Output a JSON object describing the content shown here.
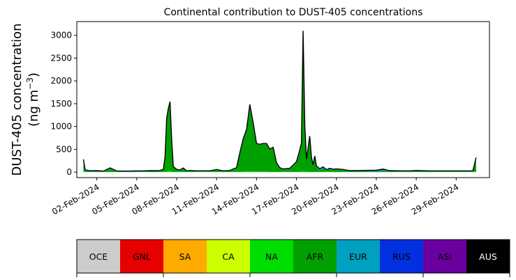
{
  "chart_data": {
    "type": "area",
    "title": "Continental contribution to DUST-405 concentrations",
    "ylabel_line1": "DUST-405 concentration",
    "ylabel_line2": "(ng m",
    "ylabel_unit_exp": "−3",
    "ylabel_close": ")",
    "ylim": [
      -120,
      3300
    ],
    "yticks": [
      0,
      500,
      1000,
      1500,
      2000,
      2500,
      3000
    ],
    "xlim": [
      "2024-01-31T12:00",
      "2024-03-02T12:00"
    ],
    "xticks": [
      "02-Feb-2024",
      "05-Feb-2024",
      "08-Feb-2024",
      "11-Feb-2024",
      "14-Feb-2024",
      "17-Feb-2024",
      "20-Feb-2024",
      "23-Feb-2024",
      "26-Feb-2024",
      "29-Feb-2024"
    ],
    "grid": false,
    "x": [
      "2024-02-01T00:00",
      "2024-02-01T03:00",
      "2024-02-01T06:00",
      "2024-02-01T12:00",
      "2024-02-02T00:00",
      "2024-02-02T12:00",
      "2024-02-03T00:00",
      "2024-02-03T12:00",
      "2024-02-03T18:00",
      "2024-02-04T00:00",
      "2024-02-04T12:00",
      "2024-02-05T00:00",
      "2024-02-05T12:00",
      "2024-02-06T00:00",
      "2024-02-06T12:00",
      "2024-02-06T18:00",
      "2024-02-07T00:00",
      "2024-02-07T03:00",
      "2024-02-07T06:00",
      "2024-02-07T09:00",
      "2024-02-07T12:00",
      "2024-02-07T15:00",
      "2024-02-07T18:00",
      "2024-02-08T00:00",
      "2024-02-08T06:00",
      "2024-02-08T12:00",
      "2024-02-08T18:00",
      "2024-02-09T00:00",
      "2024-02-09T12:00",
      "2024-02-10T00:00",
      "2024-02-10T12:00",
      "2024-02-11T00:00",
      "2024-02-11T12:00",
      "2024-02-12T00:00",
      "2024-02-12T12:00",
      "2024-02-12T18:00",
      "2024-02-13T00:00",
      "2024-02-13T06:00",
      "2024-02-13T12:00",
      "2024-02-13T18:00",
      "2024-02-14T00:00",
      "2024-02-14T06:00",
      "2024-02-14T12:00",
      "2024-02-14T18:00",
      "2024-02-15T00:00",
      "2024-02-15T06:00",
      "2024-02-15T12:00",
      "2024-02-15T18:00",
      "2024-02-16T00:00",
      "2024-02-16T12:00",
      "2024-02-16T18:00",
      "2024-02-17T00:00",
      "2024-02-17T06:00",
      "2024-02-17T09:00",
      "2024-02-17T12:00",
      "2024-02-17T15:00",
      "2024-02-17T18:00",
      "2024-02-17T21:00",
      "2024-02-18T00:00",
      "2024-02-18T03:00",
      "2024-02-18T06:00",
      "2024-02-18T09:00",
      "2024-02-18T12:00",
      "2024-02-18T18:00",
      "2024-02-19T00:00",
      "2024-02-19T06:00",
      "2024-02-19T12:00",
      "2024-02-19T18:00",
      "2024-02-20T00:00",
      "2024-02-20T12:00",
      "2024-02-21T00:00",
      "2024-02-22T00:00",
      "2024-02-23T00:00",
      "2024-02-23T12:00",
      "2024-02-24T00:00",
      "2024-02-25T00:00",
      "2024-02-25T12:00",
      "2024-02-26T00:00",
      "2024-02-27T00:00",
      "2024-02-28T00:00",
      "2024-02-29T00:00",
      "2024-03-01T00:00",
      "2024-03-01T06:00",
      "2024-03-01T12:00"
    ],
    "series": [
      {
        "name": "OCE",
        "color": "#c8c8c8",
        "values": [
          0,
          0,
          0,
          0,
          0,
          0,
          0,
          0,
          0,
          0,
          0,
          0,
          0,
          0,
          0,
          0,
          0,
          0,
          0,
          0,
          0,
          0,
          0,
          0,
          0,
          0,
          0,
          0,
          0,
          0,
          0,
          0,
          0,
          0,
          0,
          0,
          0,
          0,
          0,
          0,
          0,
          0,
          0,
          0,
          0,
          0,
          0,
          0,
          0,
          0,
          0,
          0,
          0,
          0,
          0,
          0,
          0,
          0,
          0,
          0,
          0,
          0,
          0,
          0,
          0,
          0,
          0,
          0,
          0,
          0,
          0,
          0,
          0,
          0,
          0,
          0,
          0,
          0,
          0,
          0,
          0,
          0,
          0,
          0
        ]
      },
      {
        "name": "GNL",
        "color": "#e60000",
        "values": [
          0,
          0,
          0,
          0,
          0,
          0,
          0,
          0,
          0,
          0,
          0,
          0,
          0,
          0,
          0,
          0,
          0,
          0,
          0,
          0,
          0,
          0,
          0,
          0,
          0,
          0,
          0,
          0,
          0,
          0,
          0,
          0,
          0,
          0,
          0,
          0,
          0,
          0,
          0,
          0,
          0,
          0,
          0,
          0,
          0,
          0,
          0,
          0,
          0,
          0,
          0,
          0,
          0,
          0,
          0,
          0,
          0,
          0,
          0,
          0,
          0,
          0,
          0,
          0,
          0,
          0,
          0,
          0,
          0,
          0,
          0,
          0,
          0,
          0,
          0,
          0,
          0,
          0,
          0,
          0,
          0,
          0,
          0,
          0
        ]
      },
      {
        "name": "SA",
        "color": "#ffaa00",
        "values": [
          0,
          0,
          0,
          0,
          0,
          0,
          0,
          0,
          0,
          0,
          0,
          0,
          0,
          0,
          0,
          0,
          0,
          0,
          0,
          0,
          0,
          0,
          0,
          0,
          0,
          0,
          0,
          0,
          0,
          0,
          0,
          0,
          0,
          0,
          0,
          0,
          0,
          0,
          0,
          0,
          0,
          0,
          0,
          0,
          0,
          0,
          0,
          0,
          0,
          0,
          0,
          0,
          0,
          0,
          0,
          0,
          0,
          0,
          0,
          0,
          0,
          0,
          0,
          0,
          0,
          0,
          0,
          0,
          0,
          0,
          0,
          0,
          0,
          0,
          0,
          0,
          0,
          0,
          0,
          0,
          0,
          0,
          0,
          0
        ]
      },
      {
        "name": "CA",
        "color": "#ccff00",
        "values": [
          0,
          0,
          0,
          0,
          0,
          0,
          0,
          0,
          0,
          0,
          0,
          0,
          0,
          0,
          0,
          0,
          0,
          0,
          0,
          0,
          0,
          0,
          0,
          0,
          0,
          0,
          0,
          0,
          0,
          0,
          0,
          0,
          0,
          0,
          0,
          0,
          0,
          0,
          0,
          0,
          0,
          0,
          0,
          0,
          0,
          0,
          0,
          0,
          0,
          0,
          0,
          0,
          0,
          0,
          0,
          0,
          0,
          0,
          0,
          0,
          0,
          0,
          0,
          0,
          0,
          0,
          0,
          0,
          0,
          0,
          0,
          0,
          0,
          0,
          0,
          0,
          0,
          0,
          0,
          0,
          0,
          0,
          0,
          0
        ]
      },
      {
        "name": "NA",
        "color": "#00dd00",
        "values": [
          20,
          10,
          5,
          3,
          3,
          3,
          3,
          5,
          3,
          3,
          3,
          3,
          3,
          3,
          3,
          3,
          5,
          10,
          20,
          30,
          30,
          20,
          10,
          5,
          5,
          5,
          3,
          3,
          3,
          5,
          5,
          3,
          3,
          3,
          5,
          10,
          15,
          20,
          20,
          15,
          15,
          15,
          15,
          15,
          10,
          10,
          10,
          5,
          5,
          5,
          5,
          10,
          15,
          20,
          30,
          20,
          15,
          10,
          10,
          10,
          10,
          5,
          5,
          5,
          5,
          5,
          5,
          5,
          3,
          3,
          3,
          3,
          3,
          3,
          3,
          3,
          3,
          3,
          3,
          3,
          3,
          3,
          5,
          10
        ]
      },
      {
        "name": "AFR",
        "color": "#00a000",
        "values": [
          200,
          20,
          15,
          10,
          10,
          5,
          70,
          5,
          5,
          5,
          5,
          10,
          10,
          15,
          15,
          20,
          40,
          300,
          1150,
          1350,
          1500,
          700,
          100,
          40,
          30,
          70,
          10,
          20,
          10,
          10,
          10,
          40,
          10,
          20,
          80,
          400,
          700,
          900,
          1450,
          1050,
          600,
          580,
          600,
          600,
          480,
          520,
          180,
          80,
          50,
          60,
          120,
          200,
          450,
          600,
          3000,
          1000,
          250,
          500,
          760,
          300,
          120,
          300,
          100,
          40,
          80,
          30,
          60,
          40,
          50,
          40,
          15,
          15,
          15,
          30,
          15,
          10,
          10,
          20,
          10,
          10,
          10,
          10,
          10,
          250
        ]
      },
      {
        "name": "EUR",
        "color": "#00a0c0",
        "values": [
          30,
          10,
          10,
          8,
          10,
          5,
          10,
          5,
          5,
          5,
          5,
          5,
          5,
          5,
          5,
          5,
          5,
          5,
          5,
          5,
          5,
          5,
          5,
          5,
          5,
          5,
          5,
          5,
          5,
          5,
          5,
          5,
          5,
          5,
          5,
          5,
          5,
          5,
          5,
          5,
          5,
          5,
          5,
          5,
          5,
          5,
          5,
          5,
          5,
          10,
          20,
          10,
          10,
          10,
          10,
          10,
          10,
          10,
          10,
          10,
          20,
          40,
          20,
          20,
          20,
          10,
          10,
          10,
          10,
          5,
          5,
          5,
          5,
          15,
          5,
          5,
          5,
          5,
          5,
          5,
          5,
          5,
          5,
          30
        ]
      },
      {
        "name": "RUS",
        "color": "#0030e0",
        "values": [
          20,
          10,
          5,
          5,
          5,
          5,
          5,
          5,
          5,
          5,
          5,
          5,
          5,
          5,
          5,
          5,
          5,
          5,
          5,
          5,
          5,
          5,
          5,
          5,
          5,
          5,
          5,
          5,
          5,
          5,
          5,
          5,
          5,
          5,
          5,
          5,
          5,
          5,
          5,
          5,
          5,
          5,
          5,
          5,
          5,
          5,
          5,
          5,
          5,
          5,
          5,
          5,
          5,
          5,
          40,
          5,
          5,
          5,
          5,
          5,
          5,
          5,
          5,
          5,
          5,
          5,
          5,
          5,
          5,
          5,
          5,
          5,
          10,
          10,
          5,
          5,
          5,
          5,
          5,
          5,
          5,
          5,
          5,
          20
        ]
      },
      {
        "name": "ASI",
        "color": "#6a00a0",
        "values": [
          10,
          5,
          5,
          5,
          5,
          5,
          5,
          5,
          5,
          5,
          5,
          5,
          5,
          5,
          5,
          5,
          5,
          5,
          5,
          5,
          5,
          5,
          5,
          5,
          5,
          5,
          5,
          5,
          5,
          5,
          5,
          5,
          5,
          5,
          5,
          5,
          5,
          5,
          5,
          5,
          5,
          5,
          5,
          5,
          5,
          5,
          5,
          5,
          5,
          5,
          5,
          5,
          5,
          5,
          20,
          5,
          5,
          5,
          5,
          5,
          5,
          5,
          5,
          5,
          5,
          5,
          5,
          5,
          5,
          5,
          5,
          10,
          10,
          10,
          5,
          5,
          5,
          5,
          5,
          5,
          5,
          5,
          5,
          10
        ]
      },
      {
        "name": "AUS",
        "color": "#000000",
        "values": [
          0,
          0,
          0,
          0,
          0,
          0,
          0,
          0,
          0,
          0,
          0,
          0,
          0,
          0,
          0,
          0,
          0,
          0,
          0,
          0,
          0,
          0,
          0,
          0,
          0,
          0,
          0,
          0,
          0,
          0,
          0,
          0,
          0,
          0,
          0,
          0,
          0,
          0,
          0,
          0,
          0,
          0,
          0,
          0,
          0,
          0,
          0,
          0,
          0,
          0,
          0,
          0,
          0,
          0,
          0,
          0,
          0,
          0,
          0,
          0,
          0,
          0,
          0,
          0,
          0,
          0,
          0,
          0,
          0,
          0,
          0,
          0,
          0,
          0,
          0,
          0,
          0,
          0,
          0,
          0,
          0,
          0,
          0,
          0
        ]
      }
    ],
    "legend": {
      "placement": "bottom",
      "items": [
        {
          "label": "OCE",
          "color": "#cccccc",
          "text_color": "#000000"
        },
        {
          "label": "GNL",
          "color": "#e60000",
          "text_color": "#000000"
        },
        {
          "label": "SA",
          "color": "#ffaa00",
          "text_color": "#000000"
        },
        {
          "label": "CA",
          "color": "#ccff00",
          "text_color": "#000000"
        },
        {
          "label": "NA",
          "color": "#00dd00",
          "text_color": "#000000"
        },
        {
          "label": "AFR",
          "color": "#00a000",
          "text_color": "#000000"
        },
        {
          "label": "EUR",
          "color": "#00a0c0",
          "text_color": "#000000"
        },
        {
          "label": "RUS",
          "color": "#0030e0",
          "text_color": "#000000"
        },
        {
          "label": "ASI",
          "color": "#6a00a0",
          "text_color": "#000000"
        },
        {
          "label": "AUS",
          "color": "#000000",
          "text_color": "#ffffff"
        }
      ]
    }
  }
}
